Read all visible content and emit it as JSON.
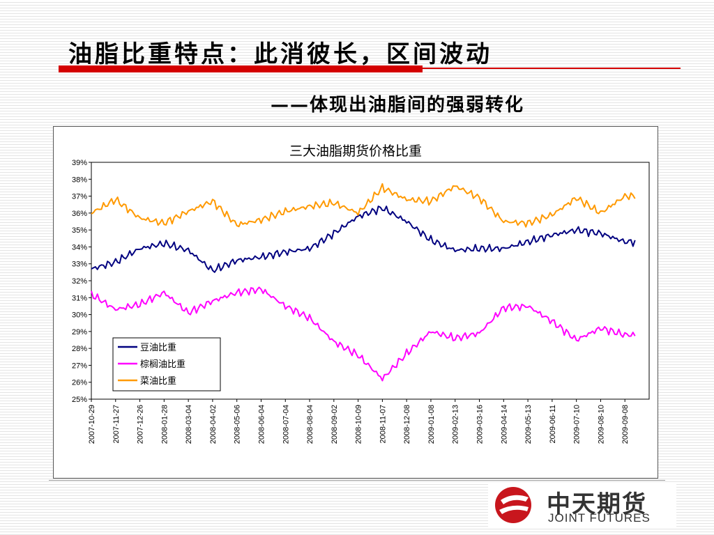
{
  "slide": {
    "title": "油脂比重特点：此消彼长，区间波动",
    "subtitle": "——体现出油脂间的强弱转化",
    "colors": {
      "accent": "#d40000"
    }
  },
  "logo": {
    "name_cn": "中天期货",
    "name_en": "JOINT FUTURES",
    "colors": {
      "mark": "#c8161d"
    }
  },
  "chart_data": {
    "type": "line",
    "title": "三大油脂期货价格比重",
    "y_tick_labels": [
      "25%",
      "26%",
      "27%",
      "28%",
      "29%",
      "30%",
      "31%",
      "32%",
      "33%",
      "34%",
      "35%",
      "36%",
      "37%",
      "38%",
      "39%"
    ],
    "ylim": [
      25,
      39
    ],
    "y_unit": "%",
    "grid": false,
    "legend_position": "bottom-left",
    "x": [
      "2007-10-29",
      "2007-11-27",
      "2007-12-26",
      "2008-01-28",
      "2008-03-04",
      "2008-04-02",
      "2008-05-06",
      "2008-06-04",
      "2008-07-04",
      "2008-08-04",
      "2008-09-02",
      "2008-10-09",
      "2008-11-07",
      "2008-12-08",
      "2009-01-08",
      "2009-02-13",
      "2009-03-16",
      "2009-04-14",
      "2009-05-13",
      "2009-06-11",
      "2009-07-10",
      "2009-08-10",
      "2009-09-08"
    ],
    "series": [
      {
        "name": "豆油比重",
        "color": "#000080",
        "values": [
          32.7,
          33.1,
          33.9,
          34.2,
          33.8,
          32.6,
          33.2,
          33.4,
          33.7,
          33.9,
          34.8,
          35.8,
          36.3,
          35.5,
          34.4,
          33.8,
          33.9,
          33.9,
          34.3,
          34.7,
          35.0,
          34.8,
          34.3
        ]
      },
      {
        "name": "棕榈油比重",
        "color": "#ff00ff",
        "values": [
          31.2,
          30.3,
          30.6,
          31.3,
          30.1,
          30.8,
          31.3,
          31.5,
          30.5,
          29.8,
          28.4,
          27.6,
          26.2,
          27.7,
          29.0,
          28.6,
          28.9,
          30.4,
          30.5,
          29.6,
          28.5,
          29.2,
          28.8
        ]
      },
      {
        "name": "菜油比重",
        "color": "#ff9900",
        "values": [
          36.0,
          36.8,
          35.7,
          35.4,
          36.1,
          36.7,
          35.3,
          35.6,
          36.1,
          36.4,
          36.6,
          36.0,
          37.5,
          36.8,
          36.7,
          37.6,
          36.9,
          35.5,
          35.4,
          35.9,
          36.9,
          36.0,
          37.0
        ]
      }
    ]
  }
}
